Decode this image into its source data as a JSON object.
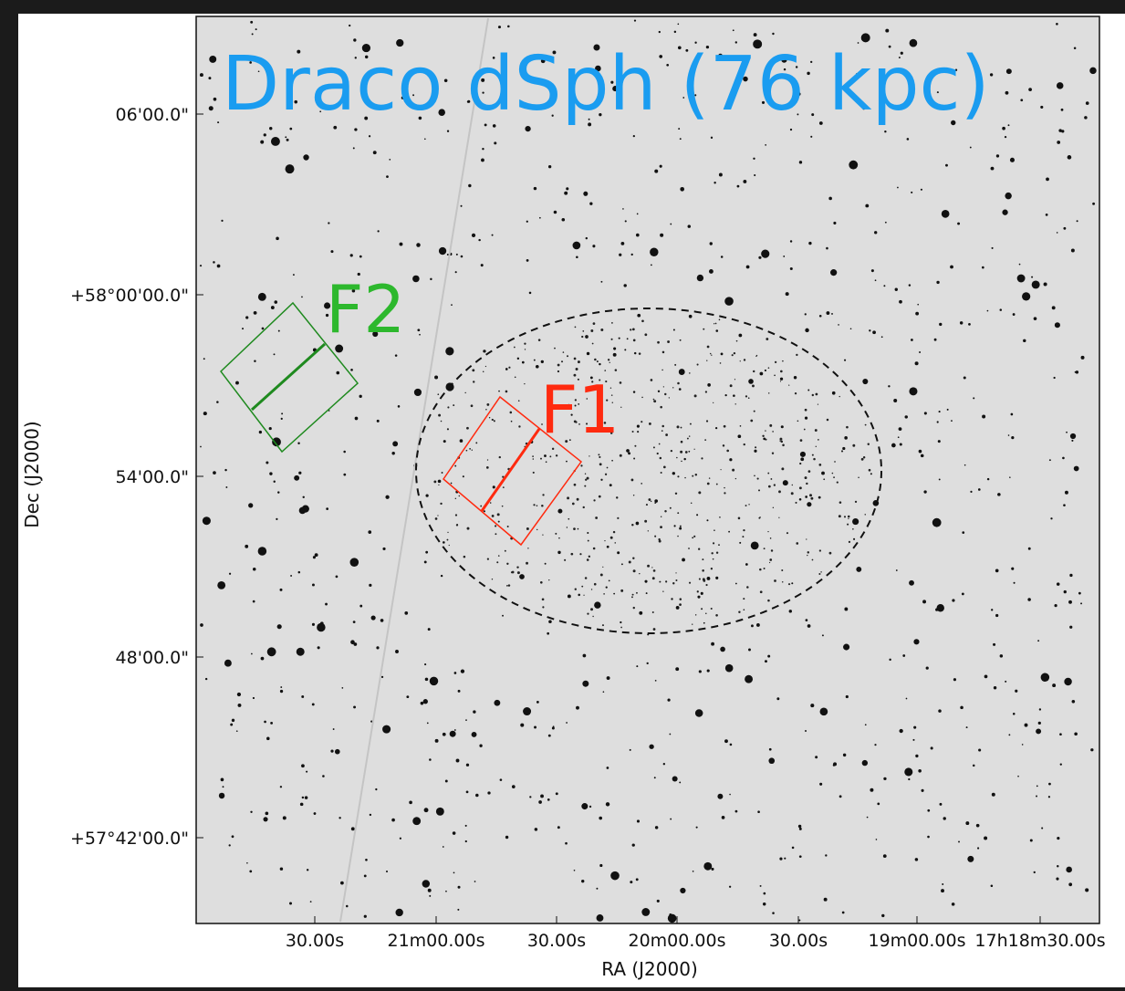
{
  "figure": {
    "title": "Draco dSph (76 kpc)",
    "field_labels": [
      "F2",
      "F1"
    ],
    "x_axis": {
      "label": "RA (J2000)",
      "tick_labels": [
        "30.00s",
        "21m00.00s",
        "30.00s",
        "20m00.00s",
        "30.00s",
        "19m00.00s",
        "17h18m30.00s"
      ]
    },
    "y_axis": {
      "label": "Dec (J2000)",
      "tick_labels": [
        "06'00.0\"",
        "+58°00'00.0\"",
        "54'00.0\"",
        "48'00.0\"",
        "+57°42'00.0\""
      ]
    }
  }
}
